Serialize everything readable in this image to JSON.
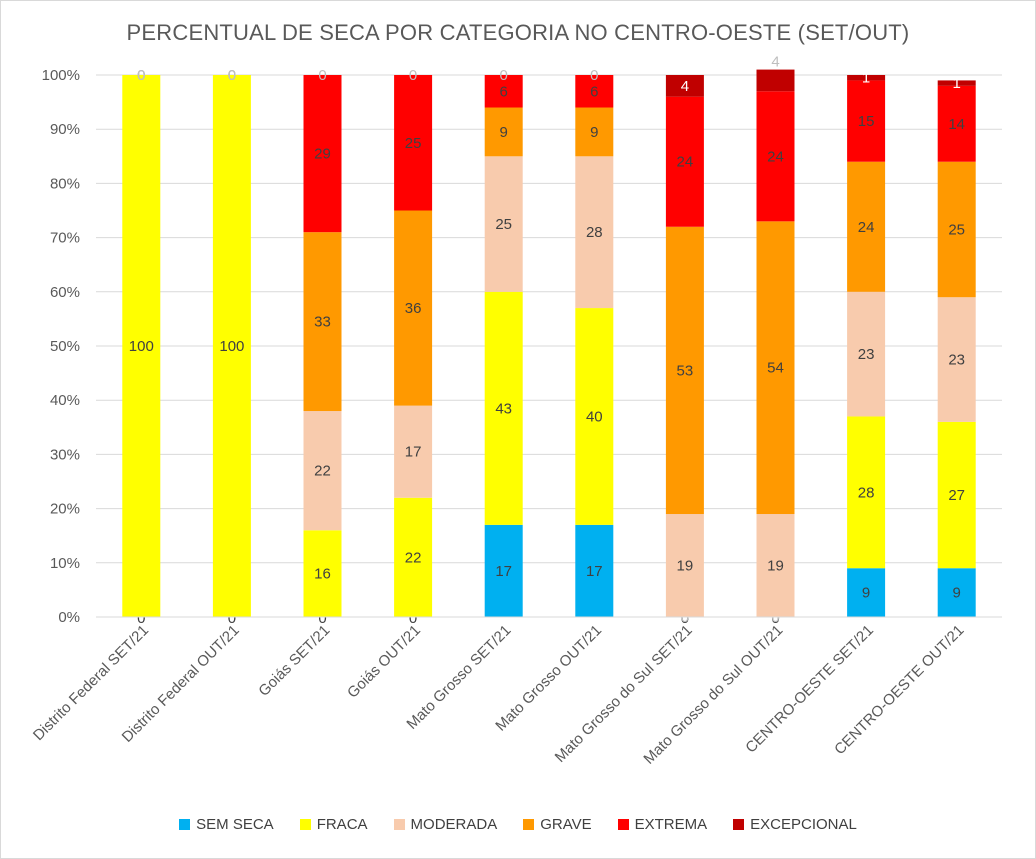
{
  "chart_data": {
    "type": "bar",
    "stacked": true,
    "title": "PERCENTUAL DE SECA POR CATEGORIA NO CENTRO-OESTE (SET/OUT)",
    "ylim": [
      0,
      100
    ],
    "yticks": [
      "0%",
      "10%",
      "20%",
      "30%",
      "40%",
      "50%",
      "60%",
      "70%",
      "80%",
      "90%",
      "100%"
    ],
    "grid": true,
    "legend_position": "bottom",
    "categories": [
      "Distrito Federal SET/21",
      "Distrito Federal OUT/21",
      "Goiás SET/21",
      "Goiás OUT/21",
      "Mato Grosso SET/21",
      "Mato Grosso OUT/21",
      "Mato Grosso do Sul SET/21",
      "Mato Grosso do Sul OUT/21",
      "CENTRO-OESTE SET/21",
      "CENTRO-OESTE OUT/21"
    ],
    "series": [
      {
        "name": "SEM SECA",
        "color": "#00b0f0",
        "values": [
          0,
          0,
          0,
          0,
          17,
          17,
          0,
          0,
          9,
          9
        ]
      },
      {
        "name": "FRACA",
        "color": "#ffff00",
        "values": [
          100,
          100,
          16,
          22,
          43,
          40,
          0,
          0,
          28,
          27
        ]
      },
      {
        "name": "MODERADA",
        "color": "#f8cbad",
        "values": [
          0,
          0,
          22,
          17,
          25,
          28,
          19,
          19,
          23,
          23
        ]
      },
      {
        "name": "GRAVE",
        "color": "#ff9900",
        "values": [
          0,
          0,
          33,
          36,
          9,
          9,
          53,
          54,
          24,
          25
        ]
      },
      {
        "name": "EXTREMA",
        "color": "#ff0000",
        "values": [
          0,
          0,
          29,
          25,
          6,
          6,
          24,
          24,
          15,
          14
        ]
      },
      {
        "name": "EXCEPCIONAL",
        "color": "#c00000",
        "values": [
          0,
          0,
          0,
          0,
          0,
          0,
          4,
          4,
          1,
          1
        ]
      }
    ]
  }
}
